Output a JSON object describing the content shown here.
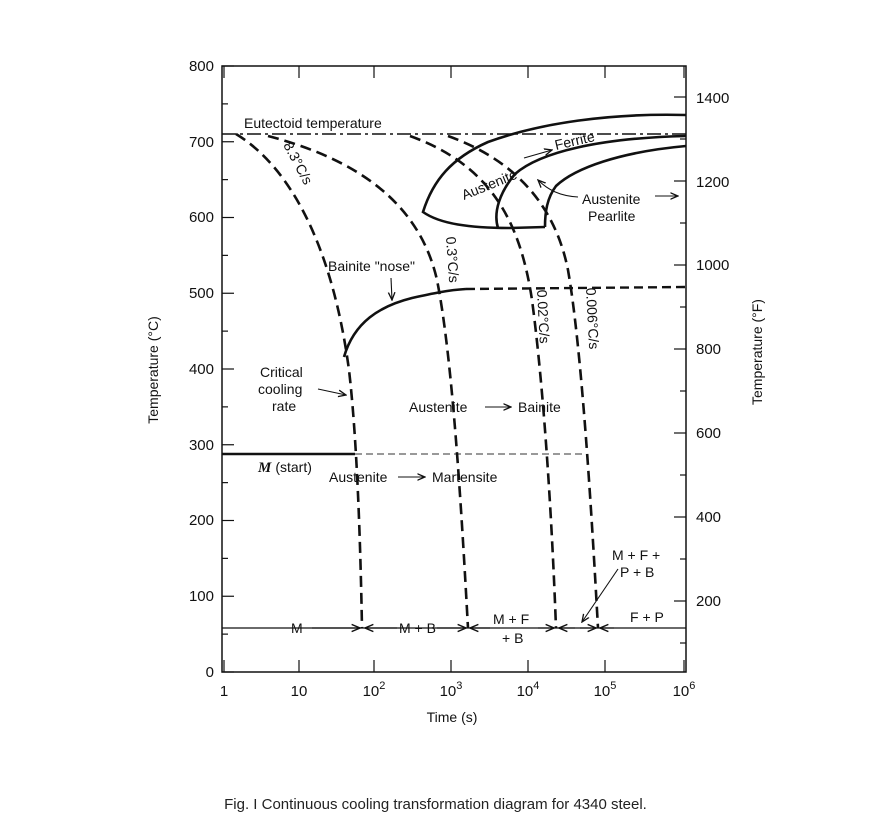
{
  "axes": {
    "left_title": "Temperature (°C)",
    "right_title": "Temperature (°F)",
    "bottom_title": "Time (s)",
    "left_ticks": [
      "0",
      "100",
      "200",
      "300",
      "400",
      "500",
      "600",
      "700",
      "800"
    ],
    "right_ticks": [
      "200",
      "400",
      "600",
      "800",
      "1000",
      "1200",
      "1400"
    ],
    "bottom_ticks": [
      {
        "base": "1",
        "exp": ""
      },
      {
        "base": "10",
        "exp": ""
      },
      {
        "base": "10",
        "exp": "2"
      },
      {
        "base": "10",
        "exp": "3"
      },
      {
        "base": "10",
        "exp": "4"
      },
      {
        "base": "10",
        "exp": "5"
      },
      {
        "base": "10",
        "exp": "6"
      }
    ]
  },
  "labels": {
    "eutectoid": "Eutectoid temperature",
    "rate_83": "8.3°C/s",
    "rate_03": "0.3°C/s",
    "rate_002": "0.02°C/s",
    "rate_0006": "0.006°C/s",
    "austenite_ferrite_a": "Austenite",
    "austenite_ferrite_b": "Ferrite",
    "austenite_pearlite_a": "Austenite",
    "austenite_pearlite_b": "Pearlite",
    "bainite_nose": "Bainite \"nose\"",
    "critical_1": "Critical",
    "critical_2": "cooling",
    "critical_3": "rate",
    "aust_bainite_a": "Austenite",
    "aust_bainite_b": "Bainite",
    "m_start_m": "M",
    "m_start_rest": "(start)",
    "aust_mart_a": "Austenite",
    "aust_mart_b": "Martensite",
    "mfpb_1": "M + F +",
    "mfpb_2": "P + B",
    "region_m": "M",
    "region_mb": "M + B",
    "region_mfb_1": "M + F",
    "region_mfb_2": "+ B",
    "region_fp": "F + P"
  },
  "caption": "Fig. I Continuous cooling transformation diagram for 4340 steel."
}
